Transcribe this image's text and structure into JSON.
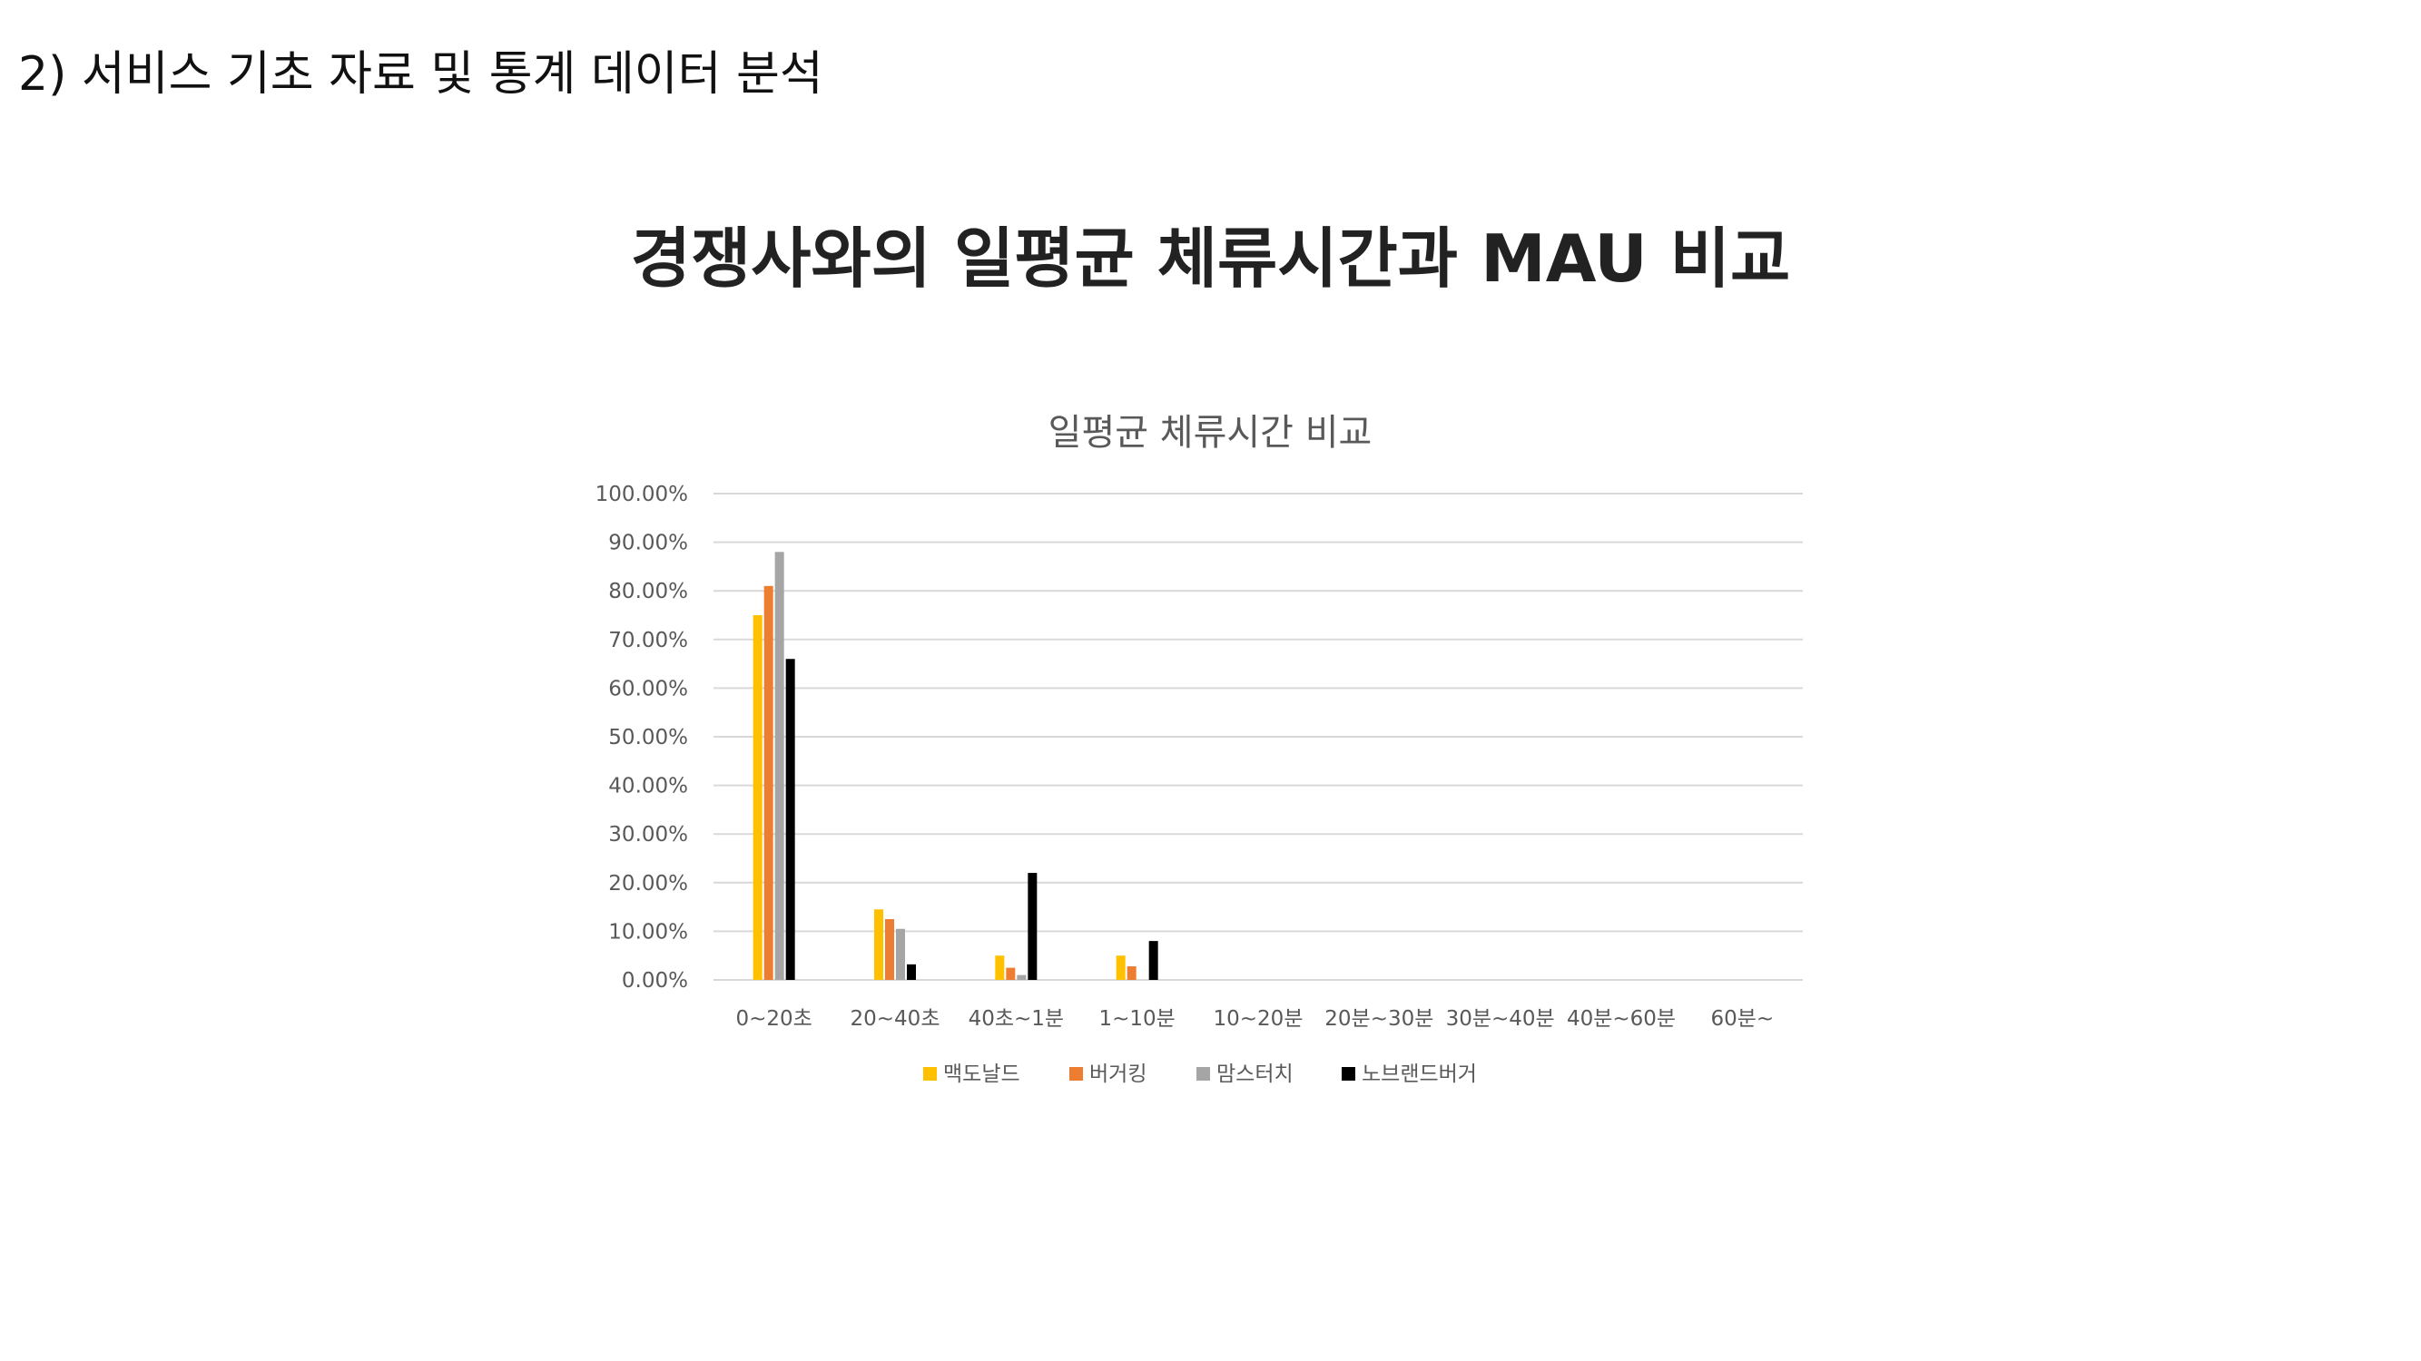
{
  "page": {
    "section_heading": "2) 서비스 기초 자료 및 통계 데이터 분석",
    "main_title": "경쟁사와의 일평균 체류시간과 MAU 비교"
  },
  "chart_data": {
    "type": "bar",
    "title": "일평균 체류시간 비교",
    "xlabel": "",
    "ylabel": "",
    "categories": [
      "0~20초",
      "20~40초",
      "40초~1분",
      "1~10분",
      "10~20분",
      "20분~30분",
      "30분~40분",
      "40분~60분",
      "60분~"
    ],
    "series": [
      {
        "name": "맥도날드",
        "color": "#FFC000",
        "values": [
          75.0,
          14.5,
          5.0,
          5.0,
          0,
          0,
          0,
          0,
          0
        ]
      },
      {
        "name": "버거킹",
        "color": "#ED7D31",
        "values": [
          81.0,
          12.5,
          2.5,
          2.8,
          0,
          0,
          0,
          0,
          0
        ]
      },
      {
        "name": "맘스터치",
        "color": "#A5A5A5",
        "values": [
          88.0,
          10.5,
          1.0,
          0,
          0,
          0,
          0,
          0,
          0
        ]
      },
      {
        "name": "노브랜드버거",
        "color": "#000000",
        "values": [
          66.0,
          3.2,
          22.0,
          8.0,
          0,
          0,
          0,
          0,
          0
        ]
      }
    ],
    "ylim": [
      0,
      100
    ],
    "yticks": [
      "0.00%",
      "10.00%",
      "20.00%",
      "30.00%",
      "40.00%",
      "50.00%",
      "60.00%",
      "70.00%",
      "80.00%",
      "90.00%",
      "100.00%"
    ],
    "grid": true,
    "legend_position": "bottom"
  }
}
